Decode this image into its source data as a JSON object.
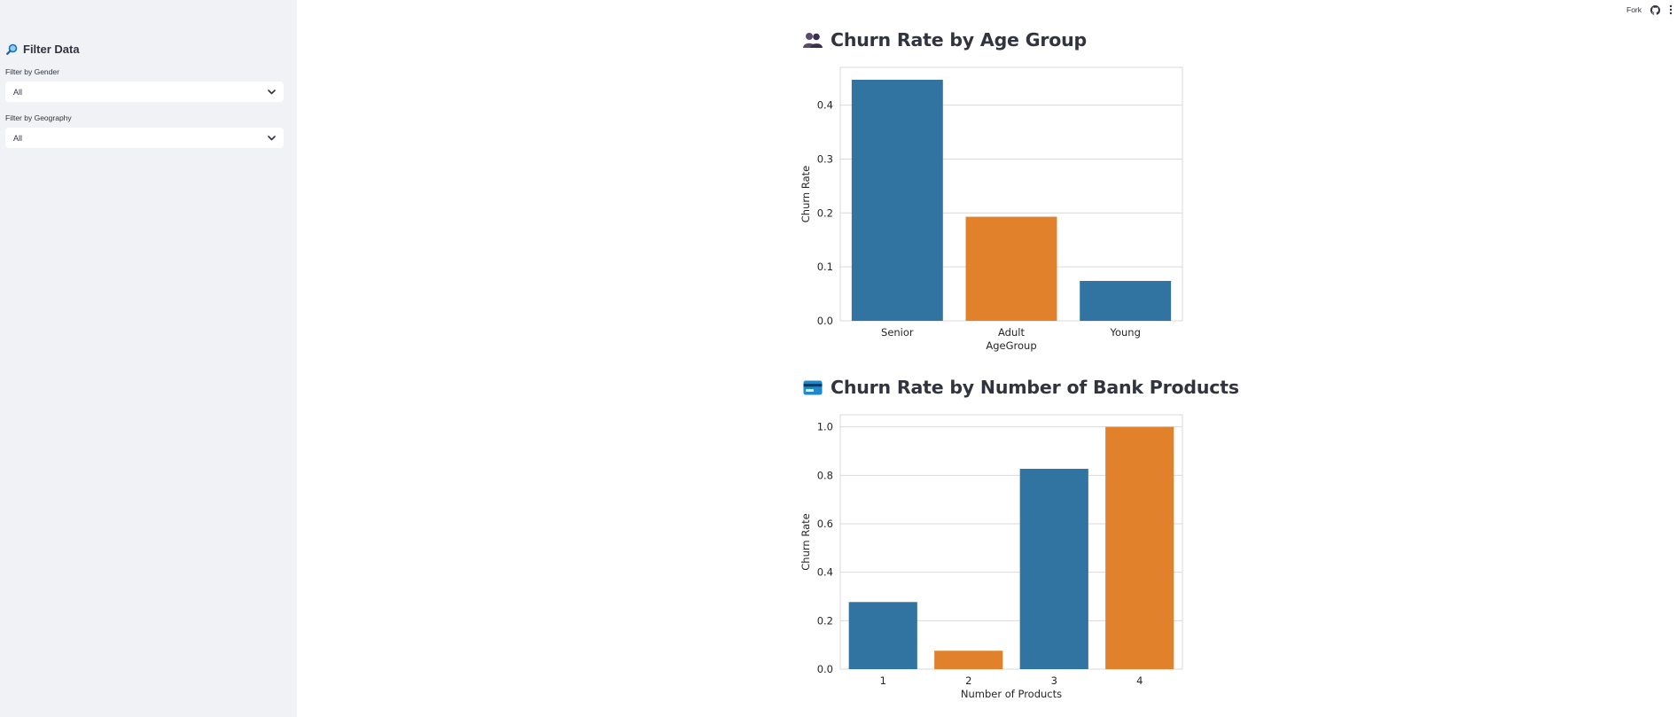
{
  "sidebar": {
    "title": "Filter Data",
    "title_icon": "magnifier-icon",
    "gender": {
      "label": "Filter by Gender",
      "value": "All"
    },
    "geography": {
      "label": "Filter by Geography",
      "value": "All"
    }
  },
  "toolbar": {
    "fork_label": "Fork",
    "icons": [
      "github-icon",
      "more-vertical-icon"
    ]
  },
  "colors": {
    "blue": "#3274a1",
    "orange": "#e1812c",
    "sidebar_bg": "#f0f2f6"
  },
  "sections": [
    {
      "title": "Churn Rate by Age Group",
      "icon": "people-icon"
    },
    {
      "title": "Churn Rate by Number of Bank Products",
      "icon": "credit-card-icon"
    }
  ],
  "chart_data": [
    {
      "type": "bar",
      "title": "Churn Rate by Age Group",
      "categories": [
        "Senior",
        "Adult",
        "Young"
      ],
      "values": [
        0.447,
        0.193,
        0.074
      ],
      "bar_colors": [
        "#3274a1",
        "#e1812c",
        "#3274a1"
      ],
      "xlabel": "AgeGroup",
      "ylabel": "Churn Rate",
      "ylim": [
        0,
        0.47
      ],
      "yticks": [
        "0.0",
        "0.1",
        "0.2",
        "0.3",
        "0.4"
      ],
      "grid": true
    },
    {
      "type": "bar",
      "title": "Churn Rate by Number of Bank Products",
      "categories": [
        "1",
        "2",
        "3",
        "4"
      ],
      "values": [
        0.277,
        0.076,
        0.827,
        1.0
      ],
      "bar_colors": [
        "#3274a1",
        "#e1812c",
        "#3274a1",
        "#e1812c"
      ],
      "xlabel": "Number of Products",
      "ylabel": "Churn Rate",
      "ylim": [
        0,
        1.05
      ],
      "yticks": [
        "0.0",
        "0.2",
        "0.4",
        "0.6",
        "0.8",
        "1.0"
      ],
      "grid": true
    }
  ]
}
